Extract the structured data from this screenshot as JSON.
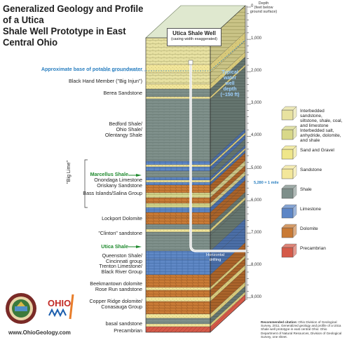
{
  "title": {
    "line1": "Generalized Geology and Profile of a Utica",
    "line2": "Shale Well Prototype in East Central Ohio"
  },
  "well": {
    "label": "Utica Shale Well",
    "note": "(casing width exaggerated)",
    "typical_depth_line1": "Typical",
    "typical_depth_line2": "water",
    "typical_depth_line3": "well",
    "typical_depth_line4": "depth",
    "typical_depth_line5": "(~150 ft)",
    "horizontal_label_line1": "Horizontal",
    "horizontal_label_line2": "drilling"
  },
  "groundwater_label": "Approximate base of potable groundwater",
  "formations": [
    {
      "id": "black-hand",
      "label": "Black Hand Member (\"Big Injun\")"
    },
    {
      "id": "berea",
      "label": "Berea Sandstone"
    },
    {
      "id": "bedford-1",
      "label": "Bedford Shale/"
    },
    {
      "id": "bedford-2",
      "label": "Ohio Shale/"
    },
    {
      "id": "bedford-3",
      "label": "Olentangy Shale"
    },
    {
      "id": "marcellus",
      "label": "Marcellus Shale"
    },
    {
      "id": "onondaga",
      "label": "Onondaga Limestone"
    },
    {
      "id": "oriskany",
      "label": "Oriskany Sandstone"
    },
    {
      "id": "bass",
      "label": "Bass Islands/Salina Group"
    },
    {
      "id": "lockport",
      "label": "Lockport Dolomite"
    },
    {
      "id": "clinton",
      "label": "\"Clinton\" sandstone"
    },
    {
      "id": "queenston-1",
      "label": "Queenston Shale/"
    },
    {
      "id": "queenston-2",
      "label": "Cincinnati group"
    },
    {
      "id": "utica",
      "label": "Utica Shale"
    },
    {
      "id": "trenton-1",
      "label": "Trenton Limestone/"
    },
    {
      "id": "trenton-2",
      "label": "Black River Group"
    },
    {
      "id": "beekmantown-1",
      "label": "Beekmantown dolomite"
    },
    {
      "id": "beekmantown-2",
      "label": "Rose Run sandstone"
    },
    {
      "id": "copper-1",
      "label": "Copper Ridge dolomite/"
    },
    {
      "id": "copper-2",
      "label": "Conasauga Group"
    },
    {
      "id": "basal",
      "label": "basal sandstone"
    },
    {
      "id": "precambrian",
      "label": "Precambrian"
    }
  ],
  "big_lime_label": "\"Big Lime\"",
  "depth_axis": {
    "header_line1": "Depth",
    "header_line2": "(feet below",
    "header_line3": "ground surface)",
    "ticks": [
      "0",
      "1,000",
      "2,000",
      "3,000",
      "4,000",
      "5,000",
      "6,000",
      "7,000",
      "8,000",
      "9,000"
    ],
    "mile_marker": "5,280 = 1 mile"
  },
  "legend": [
    {
      "label_line1": "Interbedded sandstone,",
      "label_line2": "siltstone, shale, coal,",
      "label_line3": "and limestone",
      "color": "#e8e2a0"
    },
    {
      "label_line1": "Interbedded salt,",
      "label_line2": "anhydride, dolomite,",
      "label_line3": "and shale",
      "color": "#d8d889"
    },
    {
      "label_line1": "Sand and Gravel",
      "label_line2": "",
      "label_line3": "",
      "color": "#efe68a"
    },
    {
      "label_line1": "Sandstone",
      "label_line2": "",
      "label_line3": "",
      "color": "#f3e79a"
    },
    {
      "label_line1": "Shale",
      "label_line2": "",
      "label_line3": "",
      "color": "#7e8f8a"
    },
    {
      "label_line1": "Limestone",
      "label_line2": "",
      "label_line3": "",
      "color": "#5d86c6"
    },
    {
      "label_line1": "Dolomite",
      "label_line2": "",
      "label_line3": "",
      "color": "#c97a35"
    },
    {
      "label_line1": "Precambrian",
      "label_line2": "",
      "label_line3": "",
      "color": "#d55a49"
    }
  ],
  "citation": {
    "bold": "Recommended citation:",
    "text": "Ohio Division of Geological Survey, 2011, Generalized geology and profile of a Utica Shale well prototype in east central Ohio: Ohio Department of Natural Resources, Division of Geological Survey, one sheet."
  },
  "logo": {
    "ohio": "OHIO"
  },
  "url": "www.OhioGeology.com"
}
